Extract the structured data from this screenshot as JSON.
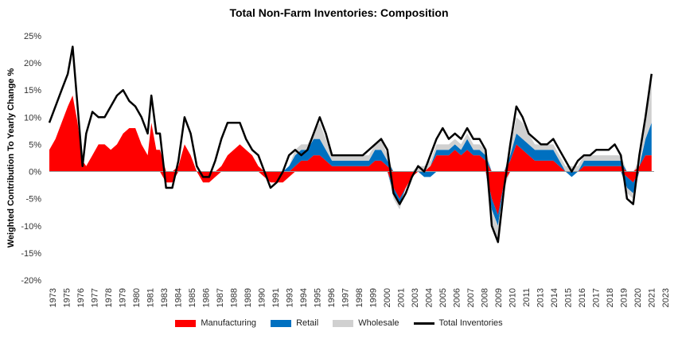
{
  "chart_data": {
    "type": "area",
    "title": "Total Non-Farm Inventories: Composition",
    "ylabel": "Weighted Contribution To Yearly Change %",
    "xlabel": "",
    "ylim": [
      -20,
      25
    ],
    "yticks": [
      25,
      20,
      15,
      10,
      5,
      0,
      -5,
      -10,
      -15,
      -20
    ],
    "ytick_labels": [
      "25%",
      "20%",
      "15%",
      "10%",
      "5%",
      "0%",
      "-5%",
      "-10%",
      "-15%",
      "-20%"
    ],
    "xlim": [
      1973,
      2023.5
    ],
    "xtick_labels": [
      "1973",
      "1975",
      "1976",
      "1977",
      "1978",
      "1979",
      "1980",
      "1981",
      "1983",
      "1984",
      "1985",
      "1986",
      "1987",
      "1988",
      "1989",
      "1990",
      "1991",
      "1993",
      "1994",
      "1995",
      "1996",
      "1997",
      "1998",
      "1999",
      "2000",
      "2001",
      "2003",
      "2004",
      "2005",
      "2006",
      "2007",
      "2008",
      "2009",
      "2010",
      "2011",
      "2013",
      "2014",
      "2015",
      "2016",
      "2017",
      "2018",
      "2019",
      "2020",
      "2021",
      "2023"
    ],
    "legend_position": "bottom",
    "grid": false,
    "colors": {
      "Manufacturing": "#ff0000",
      "Retail": "#0070c0",
      "Wholesale": "#d0d0d0",
      "Total Inventories": "#000000"
    },
    "x": [
      1973.0,
      1973.5,
      1974.0,
      1974.5,
      1974.9,
      1975.3,
      1975.7,
      1976.0,
      1976.5,
      1977.0,
      1977.5,
      1978.0,
      1978.5,
      1979.0,
      1979.5,
      1980.0,
      1980.5,
      1981.0,
      1981.3,
      1981.7,
      1982.0,
      1982.5,
      1983.0,
      1983.5,
      1984.0,
      1984.5,
      1985.0,
      1985.5,
      1986.0,
      1986.5,
      1987.0,
      1987.5,
      1988.0,
      1988.5,
      1989.0,
      1989.5,
      1990.0,
      1990.5,
      1991.0,
      1991.5,
      1992.0,
      1992.5,
      1993.0,
      1993.5,
      1994.0,
      1994.5,
      1995.0,
      1995.5,
      1996.0,
      1996.5,
      1997.0,
      1997.5,
      1998.0,
      1998.5,
      1999.0,
      1999.5,
      2000.0,
      2000.5,
      2001.0,
      2001.5,
      2002.0,
      2002.5,
      2003.0,
      2003.5,
      2004.0,
      2004.5,
      2005.0,
      2005.5,
      2006.0,
      2006.5,
      2007.0,
      2007.5,
      2008.0,
      2008.5,
      2009.0,
      2009.5,
      2010.0,
      2010.5,
      2011.0,
      2011.5,
      2012.0,
      2012.5,
      2013.0,
      2013.5,
      2014.0,
      2014.5,
      2015.0,
      2015.5,
      2016.0,
      2016.5,
      2017.0,
      2017.5,
      2018.0,
      2018.5,
      2019.0,
      2019.5,
      2020.0,
      2020.5,
      2021.0,
      2021.5,
      2022.0
    ],
    "series": [
      {
        "name": "Manufacturing",
        "values": [
          4,
          6,
          9,
          12,
          14,
          9,
          2,
          1,
          3,
          5,
          5,
          4,
          5,
          7,
          8,
          8,
          5,
          3,
          9,
          4,
          4,
          -2,
          -2,
          1,
          5,
          3,
          0,
          -2,
          -2,
          -1,
          1,
          3,
          4,
          5,
          4,
          3,
          1,
          -1,
          -2,
          -2,
          -2,
          -1,
          1,
          2,
          2,
          3,
          3,
          2,
          1,
          1,
          1,
          1,
          1,
          1,
          1,
          2,
          2,
          1,
          -3,
          -5,
          -3,
          -1,
          0,
          0,
          1,
          3,
          3,
          3,
          4,
          3,
          4,
          3,
          3,
          2,
          -5,
          -8,
          -2,
          2,
          5,
          4,
          3,
          2,
          2,
          2,
          2,
          1,
          0,
          0,
          0,
          1,
          1,
          1,
          1,
          1,
          1,
          1,
          -1,
          -2,
          1,
          3,
          3
        ]
      },
      {
        "name": "Retail",
        "values": [
          0,
          0,
          0,
          0,
          0,
          0,
          0,
          0,
          0,
          0,
          0,
          0,
          0,
          0,
          0,
          0,
          0,
          0,
          0,
          0,
          0,
          0,
          0,
          0,
          0,
          0,
          0,
          0,
          0,
          0,
          0,
          0,
          0,
          0,
          0,
          0,
          0,
          0,
          0,
          0,
          0,
          1,
          2,
          2,
          2,
          3,
          3,
          2,
          1,
          1,
          1,
          1,
          1,
          1,
          1,
          2,
          2,
          1,
          -1,
          -1,
          0,
          0,
          0,
          -1,
          -1,
          1,
          1,
          1,
          1,
          1,
          2,
          1,
          1,
          1,
          -2,
          -2,
          0,
          1,
          2,
          2,
          2,
          2,
          2,
          2,
          2,
          1,
          0,
          -1,
          0,
          1,
          1,
          1,
          1,
          1,
          1,
          1,
          -2,
          -2,
          0,
          3,
          6
        ]
      },
      {
        "name": "Wholesale",
        "values": [
          0,
          0,
          0,
          0,
          0,
          0,
          0,
          0,
          0,
          0,
          0,
          0,
          0,
          0,
          0,
          0,
          0,
          0,
          0,
          0,
          0,
          0,
          0,
          0,
          0,
          0,
          0,
          0,
          0,
          0,
          0,
          0,
          0,
          0,
          0,
          0,
          0,
          0,
          0,
          0,
          0,
          0,
          1,
          1,
          1,
          1,
          3,
          2,
          1,
          1,
          1,
          1,
          1,
          1,
          1,
          1,
          2,
          1,
          -1,
          -1,
          0,
          0,
          1,
          1,
          1,
          1,
          1,
          1,
          1,
          1,
          1,
          1,
          1,
          1,
          -3,
          -3,
          -1,
          1,
          3,
          3,
          2,
          1,
          1,
          1,
          1,
          1,
          1,
          1,
          1,
          1,
          1,
          1,
          1,
          1,
          1,
          1,
          -1,
          -1,
          1,
          4,
          9
        ]
      },
      {
        "name": "Total Inventories",
        "values": [
          9,
          12,
          15,
          18,
          23,
          12,
          1,
          7,
          11,
          10,
          10,
          12,
          14,
          15,
          13,
          12,
          10,
          7,
          14,
          7,
          7,
          -3,
          -3,
          2,
          10,
          7,
          1,
          -1,
          -1,
          2,
          6,
          9,
          9,
          9,
          6,
          4,
          3,
          0,
          -3,
          -2,
          0,
          3,
          4,
          3,
          4,
          7,
          10,
          7,
          3,
          3,
          3,
          3,
          3,
          3,
          4,
          5,
          6,
          4,
          -4,
          -6,
          -4,
          -1,
          1,
          0,
          3,
          6,
          8,
          6,
          7,
          6,
          8,
          6,
          6,
          4,
          -10,
          -13,
          -3,
          5,
          12,
          10,
          7,
          6,
          5,
          5,
          6,
          4,
          2,
          0,
          2,
          3,
          3,
          4,
          4,
          4,
          5,
          3,
          -5,
          -6,
          3,
          10,
          18
        ]
      }
    ]
  }
}
